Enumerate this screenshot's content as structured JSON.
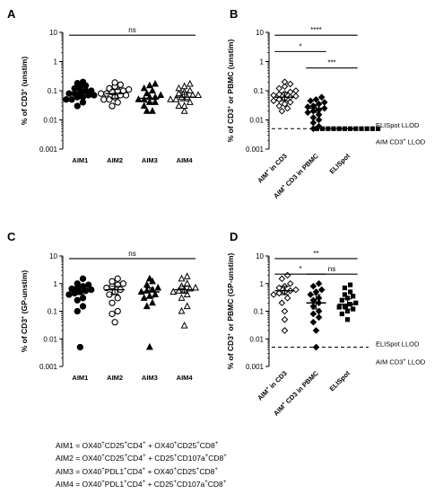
{
  "legend": [
    {
      "name": "AIM1",
      "def": [
        [
          "OX40",
          "+"
        ],
        [
          "CD25",
          "+"
        ],
        [
          "CD4",
          "+"
        ],
        [
          " + OX40",
          ""
        ],
        [
          "",
          "+"
        ],
        [
          "CD25",
          "+"
        ],
        [
          "CD8",
          "+"
        ]
      ]
    },
    {
      "name": "AIM2",
      "def": [
        [
          "OX40",
          "+"
        ],
        [
          "CD25",
          "+"
        ],
        [
          "CD4",
          "+"
        ],
        [
          " + CD25",
          ""
        ],
        [
          "",
          "+"
        ],
        [
          "CD107a",
          "+"
        ],
        [
          "CD8",
          "+"
        ]
      ]
    },
    {
      "name": "AIM3",
      "def": [
        [
          "OX40",
          "+"
        ],
        [
          "PDL1",
          "+"
        ],
        [
          "CD4",
          "+"
        ],
        [
          " + OX40",
          ""
        ],
        [
          "",
          "+"
        ],
        [
          "CD25",
          "+"
        ],
        [
          "CD8",
          "+"
        ]
      ]
    },
    {
      "name": "AIM4",
      "def": [
        [
          "OX40",
          "+"
        ],
        [
          "PDL1",
          "+"
        ],
        [
          "CD4",
          "+"
        ],
        [
          " + CD25",
          ""
        ],
        [
          "",
          "+"
        ],
        [
          "CD107a",
          "+"
        ],
        [
          "CD8",
          "+"
        ]
      ]
    }
  ],
  "chart_data": [
    {
      "panel": "A",
      "type": "scatter",
      "ylabel": [
        [
          "% of CD3",
          ""
        ],
        [
          "",
          "+"
        ],
        [
          " (unstim)",
          ""
        ]
      ],
      "yscale": "log",
      "ylim": [
        0.001,
        10
      ],
      "yticks": [
        {
          "v": 0.001,
          "t": "0.001"
        },
        {
          "v": 0.01,
          "t": "0.01"
        },
        {
          "v": 0.1,
          "t": "0.1"
        },
        {
          "v": 1,
          "t": "1"
        },
        {
          "v": 10,
          "t": "10"
        }
      ],
      "categories": [
        "AIM1",
        "AIM2",
        "AIM3",
        "AIM4"
      ],
      "rotate_labels": false,
      "marker": [
        "circle",
        "circle-open",
        "triangle",
        "triangle-open"
      ],
      "series": [
        {
          "values": [
            0.03,
            0.04,
            0.05,
            0.05,
            0.06,
            0.06,
            0.07,
            0.07,
            0.08,
            0.08,
            0.09,
            0.1,
            0.1,
            0.12,
            0.13,
            0.15,
            0.18,
            0.2
          ],
          "median": 0.08,
          "err": [
            0.055,
            0.11
          ]
        },
        {
          "values": [
            0.03,
            0.04,
            0.05,
            0.05,
            0.06,
            0.07,
            0.07,
            0.08,
            0.08,
            0.09,
            0.1,
            0.1,
            0.11,
            0.12,
            0.14,
            0.16,
            0.19
          ],
          "median": 0.08,
          "err": [
            0.055,
            0.11
          ]
        },
        {
          "values": [
            0.02,
            0.02,
            0.03,
            0.04,
            0.04,
            0.05,
            0.05,
            0.06,
            0.06,
            0.07,
            0.08,
            0.1,
            0.12,
            0.15,
            0.17
          ],
          "median": 0.055,
          "err": [
            0.04,
            0.085
          ]
        },
        {
          "values": [
            0.02,
            0.03,
            0.03,
            0.04,
            0.05,
            0.05,
            0.06,
            0.06,
            0.07,
            0.07,
            0.08,
            0.09,
            0.1,
            0.12,
            0.14,
            0.17
          ],
          "median": 0.06,
          "err": [
            0.045,
            0.09
          ]
        }
      ],
      "significance": [
        {
          "from": 0,
          "to": 3,
          "label": "ns",
          "level": 8
        }
      ],
      "ref_lines": []
    },
    {
      "panel": "B",
      "type": "scatter",
      "ylabel": [
        [
          "% of CD3",
          ""
        ],
        [
          "",
          "+"
        ],
        [
          " or PBMC (unstim)",
          ""
        ]
      ],
      "yscale": "log",
      "ylim": [
        0.001,
        10
      ],
      "yticks": [
        {
          "v": 0.001,
          "t": "0.001"
        },
        {
          "v": 0.01,
          "t": "0.01"
        },
        {
          "v": 0.1,
          "t": "0.1"
        },
        {
          "v": 1,
          "t": "1"
        },
        {
          "v": 10,
          "t": "10"
        }
      ],
      "categories": [
        [
          [
            "AIM",
            ""
          ],
          [
            "",
            "+"
          ],
          [
            " in CD3",
            ""
          ]
        ],
        [
          [
            "AIM",
            ""
          ],
          [
            "",
            "+"
          ],
          [
            " CD3 in PBMC",
            ""
          ]
        ],
        [
          [
            "ELISpot",
            ""
          ]
        ]
      ],
      "rotate_labels": true,
      "marker": [
        "diamond-open",
        "diamond",
        "square"
      ],
      "series": [
        {
          "values": [
            0.02,
            0.025,
            0.03,
            0.035,
            0.04,
            0.045,
            0.05,
            0.055,
            0.06,
            0.065,
            0.07,
            0.075,
            0.08,
            0.09,
            0.1,
            0.12,
            0.14,
            0.17,
            0.2
          ],
          "median": 0.06,
          "err": [
            0.045,
            0.085
          ]
        },
        {
          "values": [
            0.005,
            0.006,
            0.008,
            0.01,
            0.012,
            0.015,
            0.018,
            0.02,
            0.022,
            0.025,
            0.028,
            0.03,
            0.035,
            0.04,
            0.045,
            0.05,
            0.06
          ],
          "median": 0.025,
          "err": [
            0.018,
            0.033
          ]
        },
        {
          "values": [
            0.005,
            0.005,
            0.005,
            0.005,
            0.005,
            0.005,
            0.005,
            0.005,
            0.005,
            0.005,
            0.005,
            0.005
          ],
          "median": 0.005,
          "err": [
            0.005,
            0.005
          ]
        }
      ],
      "significance": [
        {
          "from": 0,
          "to": 2,
          "label": "****",
          "level": 8
        },
        {
          "from": 0,
          "to": 1,
          "label": "*",
          "level": 2.2
        },
        {
          "from": 1,
          "to": 2,
          "label": "***",
          "level": 0.6
        }
      ],
      "ref_lines": [
        {
          "y": 0.005,
          "label": "ELISpot LLOD",
          "label_y": 0.0068,
          "dash": true
        },
        {
          "y": 0.005,
          "label": [
            [
              "AIM CD3",
              ""
            ],
            [
              "",
              "+"
            ],
            [
              " LLOD",
              ""
            ]
          ],
          "label_y": 0.0018,
          "dash": false,
          "no_line": true
        }
      ]
    },
    {
      "panel": "C",
      "type": "scatter",
      "ylabel": [
        [
          "% of CD3",
          ""
        ],
        [
          "",
          "+"
        ],
        [
          " (GP-unstim)",
          ""
        ]
      ],
      "yscale": "log",
      "ylim": [
        0.001,
        10
      ],
      "yticks": [
        {
          "v": 0.001,
          "t": "0.001"
        },
        {
          "v": 0.01,
          "t": "0.01"
        },
        {
          "v": 0.1,
          "t": "0.1"
        },
        {
          "v": 1,
          "t": "1"
        },
        {
          "v": 10,
          "t": "10"
        }
      ],
      "categories": [
        "AIM1",
        "AIM2",
        "AIM3",
        "AIM4"
      ],
      "rotate_labels": false,
      "marker": [
        "circle",
        "circle-open",
        "triangle",
        "triangle-open"
      ],
      "series": [
        {
          "values": [
            0.005,
            0.1,
            0.15,
            0.25,
            0.3,
            0.4,
            0.45,
            0.5,
            0.55,
            0.6,
            0.65,
            0.7,
            0.8,
            0.9,
            1.0,
            1.5
          ],
          "median": 0.55,
          "err": [
            0.4,
            0.75
          ]
        },
        {
          "values": [
            0.04,
            0.08,
            0.1,
            0.2,
            0.3,
            0.4,
            0.5,
            0.6,
            0.7,
            0.8,
            0.9,
            1.0,
            1.2,
            1.5
          ],
          "median": 0.6,
          "err": [
            0.4,
            0.8
          ]
        },
        {
          "values": [
            0.005,
            0.15,
            0.2,
            0.3,
            0.35,
            0.4,
            0.5,
            0.55,
            0.6,
            0.7,
            0.9,
            1.2,
            1.5
          ],
          "median": 0.5,
          "err": [
            0.3,
            0.7
          ]
        },
        {
          "values": [
            0.03,
            0.1,
            0.15,
            0.3,
            0.4,
            0.5,
            0.55,
            0.6,
            0.65,
            0.7,
            0.8,
            1.0,
            1.5,
            1.8
          ],
          "median": 0.6,
          "err": [
            0.45,
            0.8
          ]
        }
      ],
      "significance": [
        {
          "from": 0,
          "to": 3,
          "label": "ns",
          "level": 8
        }
      ],
      "ref_lines": []
    },
    {
      "panel": "D",
      "type": "scatter",
      "ylabel": [
        [
          "% of CD3",
          ""
        ],
        [
          "",
          "+"
        ],
        [
          " or PBMC (GP-unstim)",
          ""
        ]
      ],
      "yscale": "log",
      "ylim": [
        0.001,
        10
      ],
      "yticks": [
        {
          "v": 0.001,
          "t": "0.001"
        },
        {
          "v": 0.01,
          "t": "0.01"
        },
        {
          "v": 0.1,
          "t": "0.1"
        },
        {
          "v": 1,
          "t": "1"
        },
        {
          "v": 10,
          "t": "10"
        }
      ],
      "categories": [
        [
          [
            "AIM",
            ""
          ],
          [
            "",
            "+"
          ],
          [
            " in CD3",
            ""
          ]
        ],
        [
          [
            "AIM",
            ""
          ],
          [
            "",
            "+"
          ],
          [
            " CD3 in PBMC",
            ""
          ]
        ],
        [
          [
            "ELISpot",
            ""
          ]
        ]
      ],
      "rotate_labels": true,
      "marker": [
        "diamond-open",
        "diamond",
        "square"
      ],
      "series": [
        {
          "values": [
            0.02,
            0.05,
            0.1,
            0.2,
            0.3,
            0.4,
            0.45,
            0.5,
            0.55,
            0.6,
            0.7,
            0.8,
            1.0,
            1.5,
            2.0
          ],
          "median": 0.55,
          "err": [
            0.4,
            0.8
          ]
        },
        {
          "values": [
            0.005,
            0.02,
            0.04,
            0.06,
            0.08,
            0.1,
            0.15,
            0.2,
            0.25,
            0.3,
            0.4,
            0.5,
            0.6,
            0.8,
            1.0
          ],
          "median": 0.2,
          "err": [
            0.12,
            0.4
          ]
        },
        {
          "values": [
            0.05,
            0.08,
            0.1,
            0.12,
            0.14,
            0.15,
            0.18,
            0.2,
            0.25,
            0.3,
            0.35,
            0.4,
            0.5,
            0.7,
            0.9
          ],
          "median": 0.18,
          "err": [
            0.12,
            0.28
          ]
        }
      ],
      "significance": [
        {
          "from": 0,
          "to": 2,
          "label": "**",
          "level": 8
        },
        {
          "from": 0,
          "to": 1,
          "label": "*",
          "level": 2.2
        },
        {
          "from": 1,
          "to": 2,
          "label": "ns",
          "level": 2.2
        }
      ],
      "ref_lines": [
        {
          "y": 0.005,
          "label": "ELISpot LLOD",
          "label_y": 0.0068,
          "dash": true
        },
        {
          "y": 0.005,
          "label": [
            [
              "AIM CD3",
              ""
            ],
            [
              "",
              "+"
            ],
            [
              " LLOD",
              ""
            ]
          ],
          "label_y": 0.0015,
          "dash": false,
          "no_line": true
        }
      ]
    }
  ]
}
